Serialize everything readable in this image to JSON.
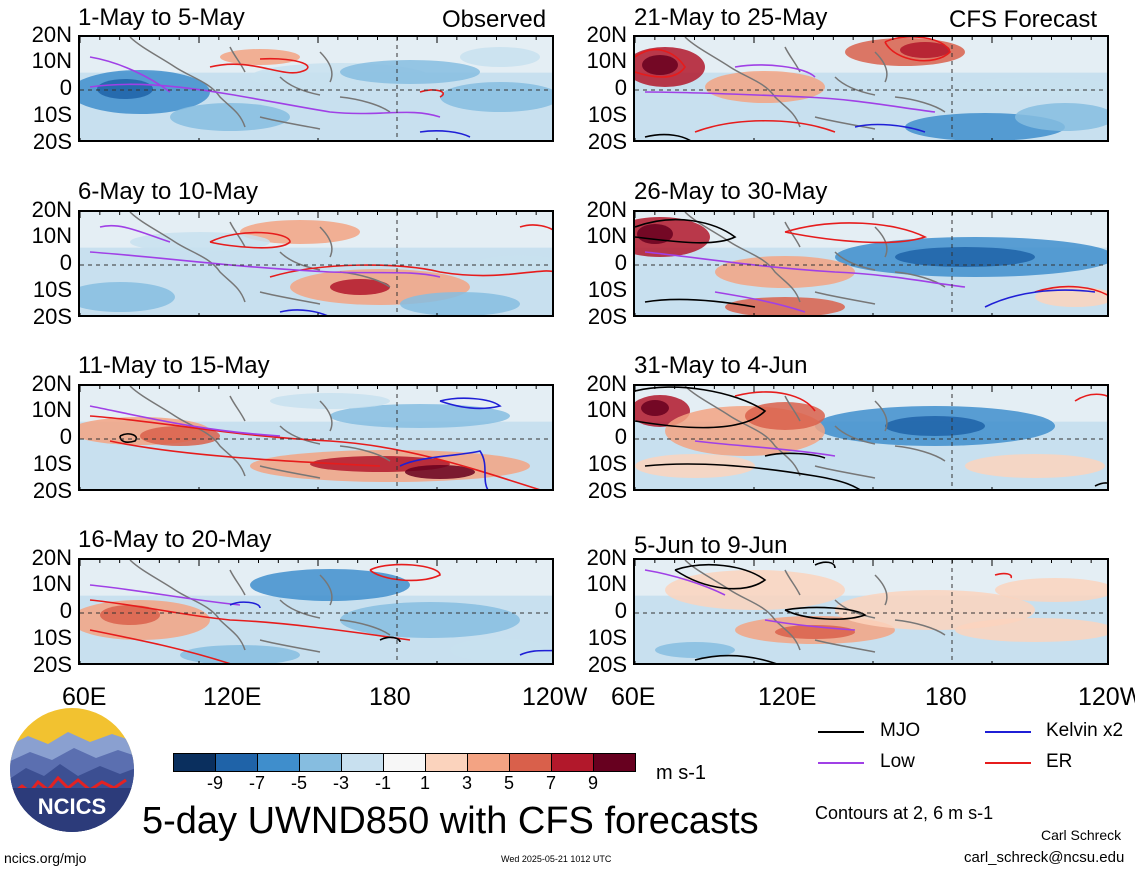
{
  "panels_left": [
    {
      "title": "1-May to 5-May",
      "tag": "Observed"
    },
    {
      "title": "6-May to 10-May",
      "tag": ""
    },
    {
      "title": "11-May to 15-May",
      "tag": ""
    },
    {
      "title": "16-May to 20-May",
      "tag": ""
    }
  ],
  "panels_right": [
    {
      "title": "21-May to 25-May",
      "tag": "CFS Forecast"
    },
    {
      "title": "26-May to 30-May",
      "tag": ""
    },
    {
      "title": "31-May to 4-Jun",
      "tag": ""
    },
    {
      "title": "5-Jun to 9-Jun",
      "tag": ""
    }
  ],
  "lat_labels": [
    "20N",
    "10N",
    "0",
    "10S",
    "20S"
  ],
  "lon_labels": [
    "60E",
    "120E",
    "180",
    "120W"
  ],
  "legend": {
    "mjo": "MJO",
    "kelvin": "Kelvin x2",
    "low": "Low",
    "er": "ER",
    "contours_note": "Contours at 2, 6 m s-1",
    "colors": {
      "mjo": "#000000",
      "kelvin": "#1f1fd6",
      "low": "#a040e6",
      "er": "#e61c1c"
    }
  },
  "colorbar": {
    "ticks": [
      "-9",
      "-7",
      "-5",
      "-3",
      "-1",
      "1",
      "3",
      "5",
      "7",
      "9"
    ],
    "units": "m s-1",
    "colors": [
      "#0a2f5e",
      "#1f63a8",
      "#3f8ecc",
      "#86bde0",
      "#c8e0ef",
      "#f7f7f7",
      "#fbd3bd",
      "#f3a383",
      "#d9604b",
      "#b2182b",
      "#67001f"
    ]
  },
  "logo": {
    "text": "NCICS"
  },
  "main_title": "5-day UWND850 with CFS forecasts",
  "author": "Carl Schreck",
  "email": "carl_schreck@ncsu.edu",
  "website": "ncics.org/mjo",
  "timestamp": "Wed 2025-05-21 1012 UTC"
}
